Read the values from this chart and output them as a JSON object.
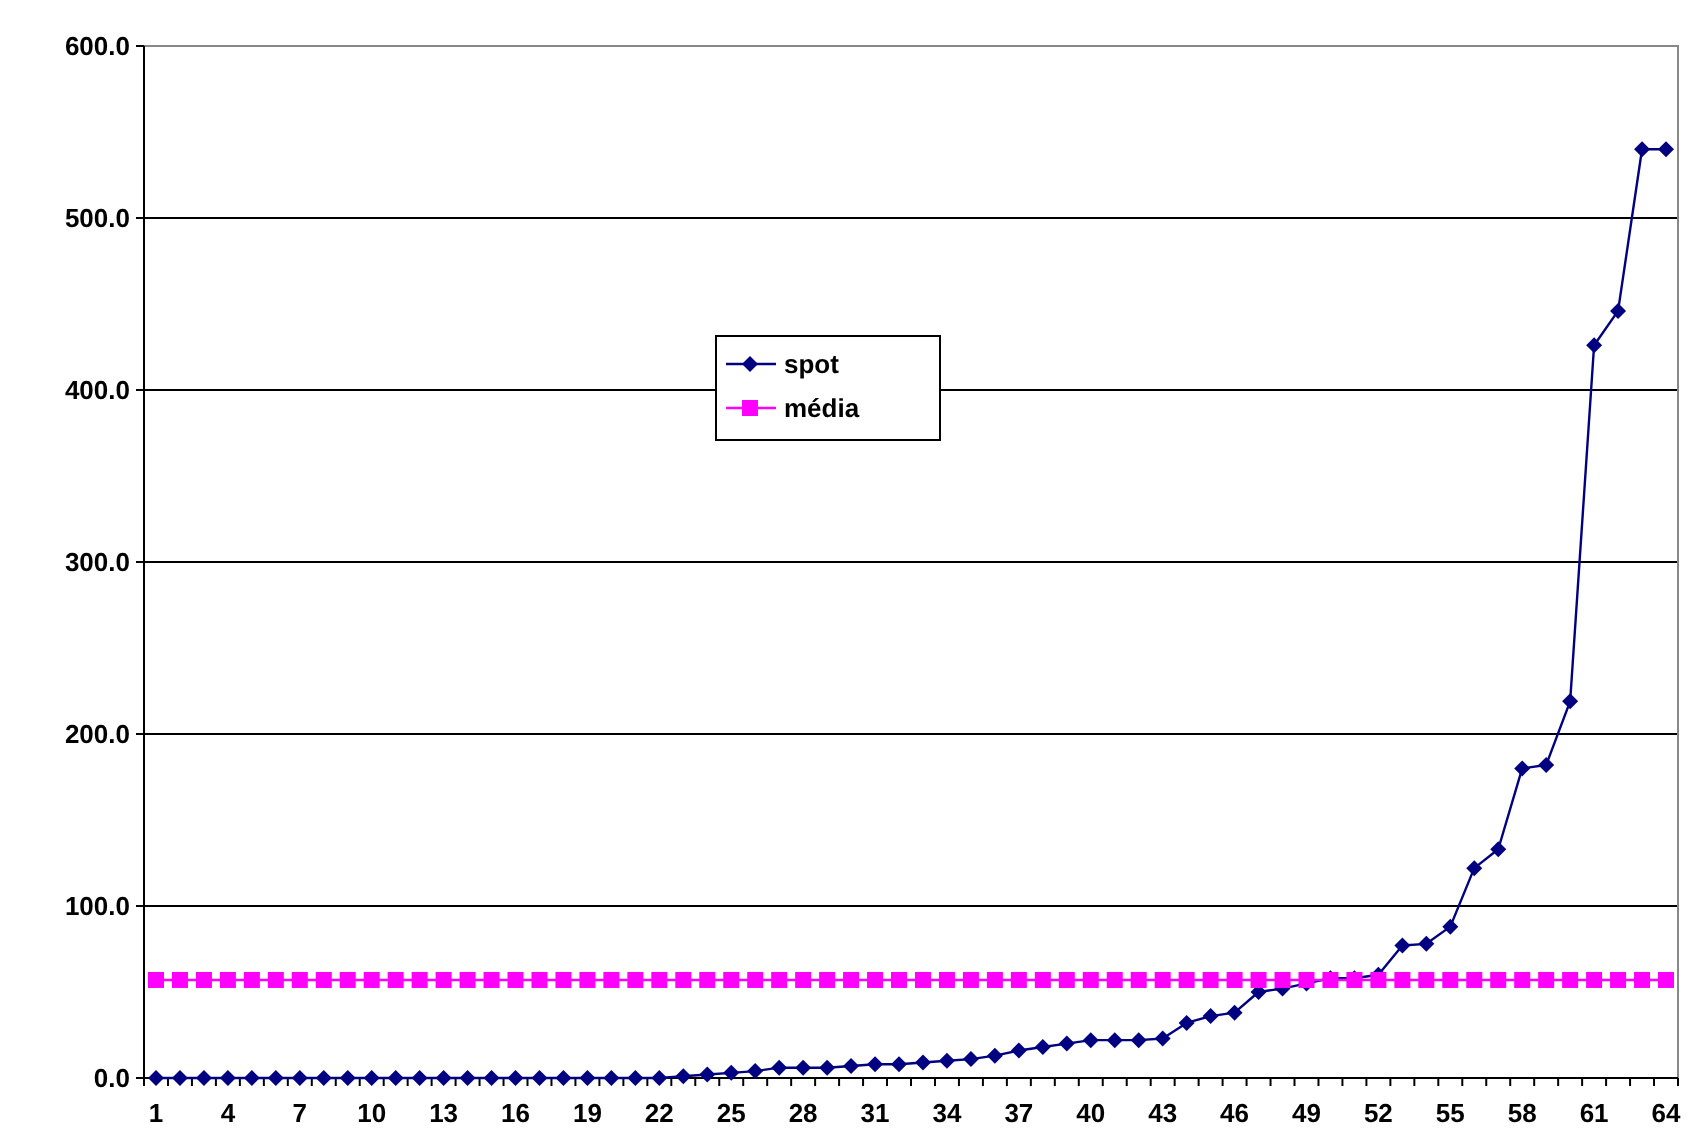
{
  "chart_data": {
    "type": "line",
    "categories": [
      "1",
      null,
      null,
      "4",
      null,
      null,
      "7",
      null,
      null,
      "10",
      null,
      null,
      "13",
      null,
      null,
      "16",
      null,
      null,
      "19",
      null,
      null,
      "22",
      null,
      null,
      "25",
      null,
      null,
      "28",
      null,
      null,
      "31",
      null,
      null,
      "34",
      null,
      null,
      "37",
      null,
      null,
      "40",
      null,
      null,
      "43",
      null,
      null,
      "46",
      null,
      null,
      "49",
      null,
      null,
      "52",
      null,
      null,
      "55",
      null,
      null,
      "58",
      null,
      null,
      "61",
      null,
      null,
      "64"
    ],
    "series": [
      {
        "name": "spot",
        "color": "#000080",
        "marker": "diamond",
        "values": [
          0,
          0,
          0,
          0,
          0,
          0,
          0,
          0,
          0,
          0,
          0,
          0,
          0,
          0,
          0,
          0,
          0,
          0,
          0,
          0,
          0,
          0,
          1,
          2,
          3,
          4,
          6,
          6,
          6,
          7,
          8,
          8,
          9,
          10,
          11,
          13,
          16,
          18,
          20,
          22,
          22,
          22,
          23,
          32,
          36,
          38,
          50,
          52,
          55,
          58,
          58,
          60,
          77,
          78,
          88,
          122,
          133,
          180,
          182,
          219,
          426,
          446,
          540,
          540
        ]
      },
      {
        "name": "média",
        "color": "#ff00ff",
        "marker": "square",
        "values": [
          57,
          57,
          57,
          57,
          57,
          57,
          57,
          57,
          57,
          57,
          57,
          57,
          57,
          57,
          57,
          57,
          57,
          57,
          57,
          57,
          57,
          57,
          57,
          57,
          57,
          57,
          57,
          57,
          57,
          57,
          57,
          57,
          57,
          57,
          57,
          57,
          57,
          57,
          57,
          57,
          57,
          57,
          57,
          57,
          57,
          57,
          57,
          57,
          57,
          57,
          57,
          57,
          57,
          57,
          57,
          57,
          57,
          57,
          57,
          57,
          57,
          57,
          57,
          57
        ]
      }
    ],
    "ylim": [
      0,
      600
    ],
    "yticks": [
      {
        "value": 0,
        "label": "0.0"
      },
      {
        "value": 100,
        "label": "100.0"
      },
      {
        "value": 200,
        "label": "200.0"
      },
      {
        "value": 300,
        "label": "300.0"
      },
      {
        "value": 400,
        "label": "400.0"
      },
      {
        "value": 500,
        "label": "500.0"
      },
      {
        "value": 600,
        "label": "600.0"
      }
    ],
    "grid": "y",
    "legend": "top"
  }
}
